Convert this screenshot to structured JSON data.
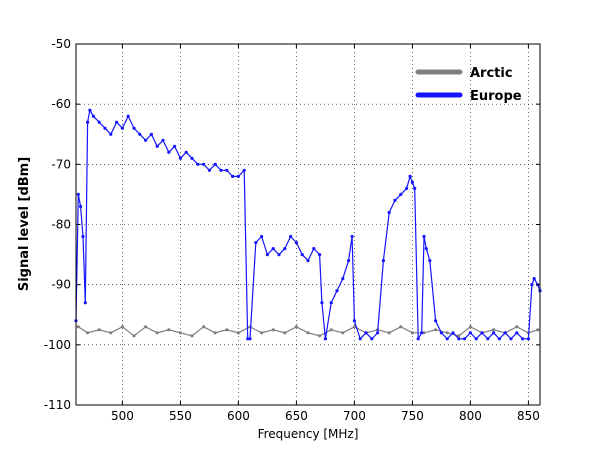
{
  "chart_data": {
    "type": "line",
    "title": "",
    "xlabel": "Frequency [MHz]",
    "ylabel": "Signal level [dBm]",
    "xlim": [
      460,
      860
    ],
    "ylim": [
      -110,
      -50
    ],
    "xticks": [
      500,
      550,
      600,
      650,
      700,
      750,
      800,
      850
    ],
    "yticks": [
      -50,
      -60,
      -70,
      -80,
      -90,
      -100,
      -110
    ],
    "grid": true,
    "legend_position": "top-right",
    "series": [
      {
        "name": "Arctic",
        "color": "#808080",
        "x": [
          462,
          470,
          480,
          490,
          500,
          510,
          520,
          530,
          540,
          550,
          560,
          570,
          580,
          590,
          600,
          610,
          620,
          630,
          640,
          650,
          660,
          670,
          680,
          690,
          700,
          710,
          720,
          730,
          740,
          750,
          760,
          770,
          780,
          790,
          800,
          810,
          820,
          830,
          840,
          850,
          858
        ],
        "values": [
          -97,
          -98,
          -97.5,
          -98,
          -97,
          -98.5,
          -97,
          -98,
          -97.5,
          -98,
          -98.5,
          -97,
          -98,
          -97.5,
          -98,
          -97,
          -98,
          -97.5,
          -98,
          -97,
          -98,
          -98.5,
          -97.5,
          -98,
          -97,
          -98,
          -97.5,
          -98,
          -97,
          -98,
          -98,
          -97.5,
          -98,
          -98.5,
          -97,
          -98,
          -97.5,
          -98,
          -97,
          -98,
          -97.5
        ]
      },
      {
        "name": "Europe",
        "color": "#1515ff",
        "x": [
          460,
          462,
          464,
          466,
          468,
          470,
          472,
          475,
          480,
          485,
          490,
          495,
          500,
          505,
          510,
          515,
          520,
          525,
          530,
          535,
          540,
          545,
          550,
          555,
          560,
          565,
          570,
          575,
          580,
          585,
          590,
          595,
          600,
          605,
          608,
          610,
          615,
          620,
          625,
          630,
          635,
          640,
          645,
          650,
          655,
          660,
          665,
          670,
          672,
          675,
          680,
          685,
          690,
          695,
          698,
          700,
          705,
          710,
          715,
          720,
          725,
          730,
          735,
          740,
          745,
          748,
          750,
          752,
          755,
          758,
          760,
          762,
          765,
          770,
          775,
          780,
          785,
          790,
          795,
          800,
          805,
          810,
          815,
          820,
          825,
          830,
          835,
          840,
          845,
          850,
          853,
          855,
          858,
          860
        ],
        "values": [
          -96,
          -75,
          -77,
          -82,
          -93,
          -63,
          -61,
          -62,
          -63,
          -64,
          -65,
          -63,
          -64,
          -62,
          -64,
          -65,
          -66,
          -65,
          -67,
          -66,
          -68,
          -67,
          -69,
          -68,
          -69,
          -70,
          -70,
          -71,
          -70,
          -71,
          -71,
          -72,
          -72,
          -71,
          -99,
          -99,
          -83,
          -82,
          -85,
          -84,
          -85,
          -84,
          -82,
          -83,
          -85,
          -86,
          -84,
          -85,
          -93,
          -99,
          -93,
          -91,
          -89,
          -86,
          -82,
          -96,
          -99,
          -98,
          -99,
          -98,
          -86,
          -78,
          -76,
          -75,
          -74,
          -72,
          -73,
          -74,
          -99,
          -98,
          -82,
          -84,
          -86,
          -96,
          -98,
          -99,
          -98,
          -99,
          -99,
          -98,
          -99,
          -98,
          -99,
          -98,
          -99,
          -98,
          -99,
          -98,
          -99,
          -99,
          -90,
          -89,
          -90,
          -91
        ]
      }
    ]
  }
}
